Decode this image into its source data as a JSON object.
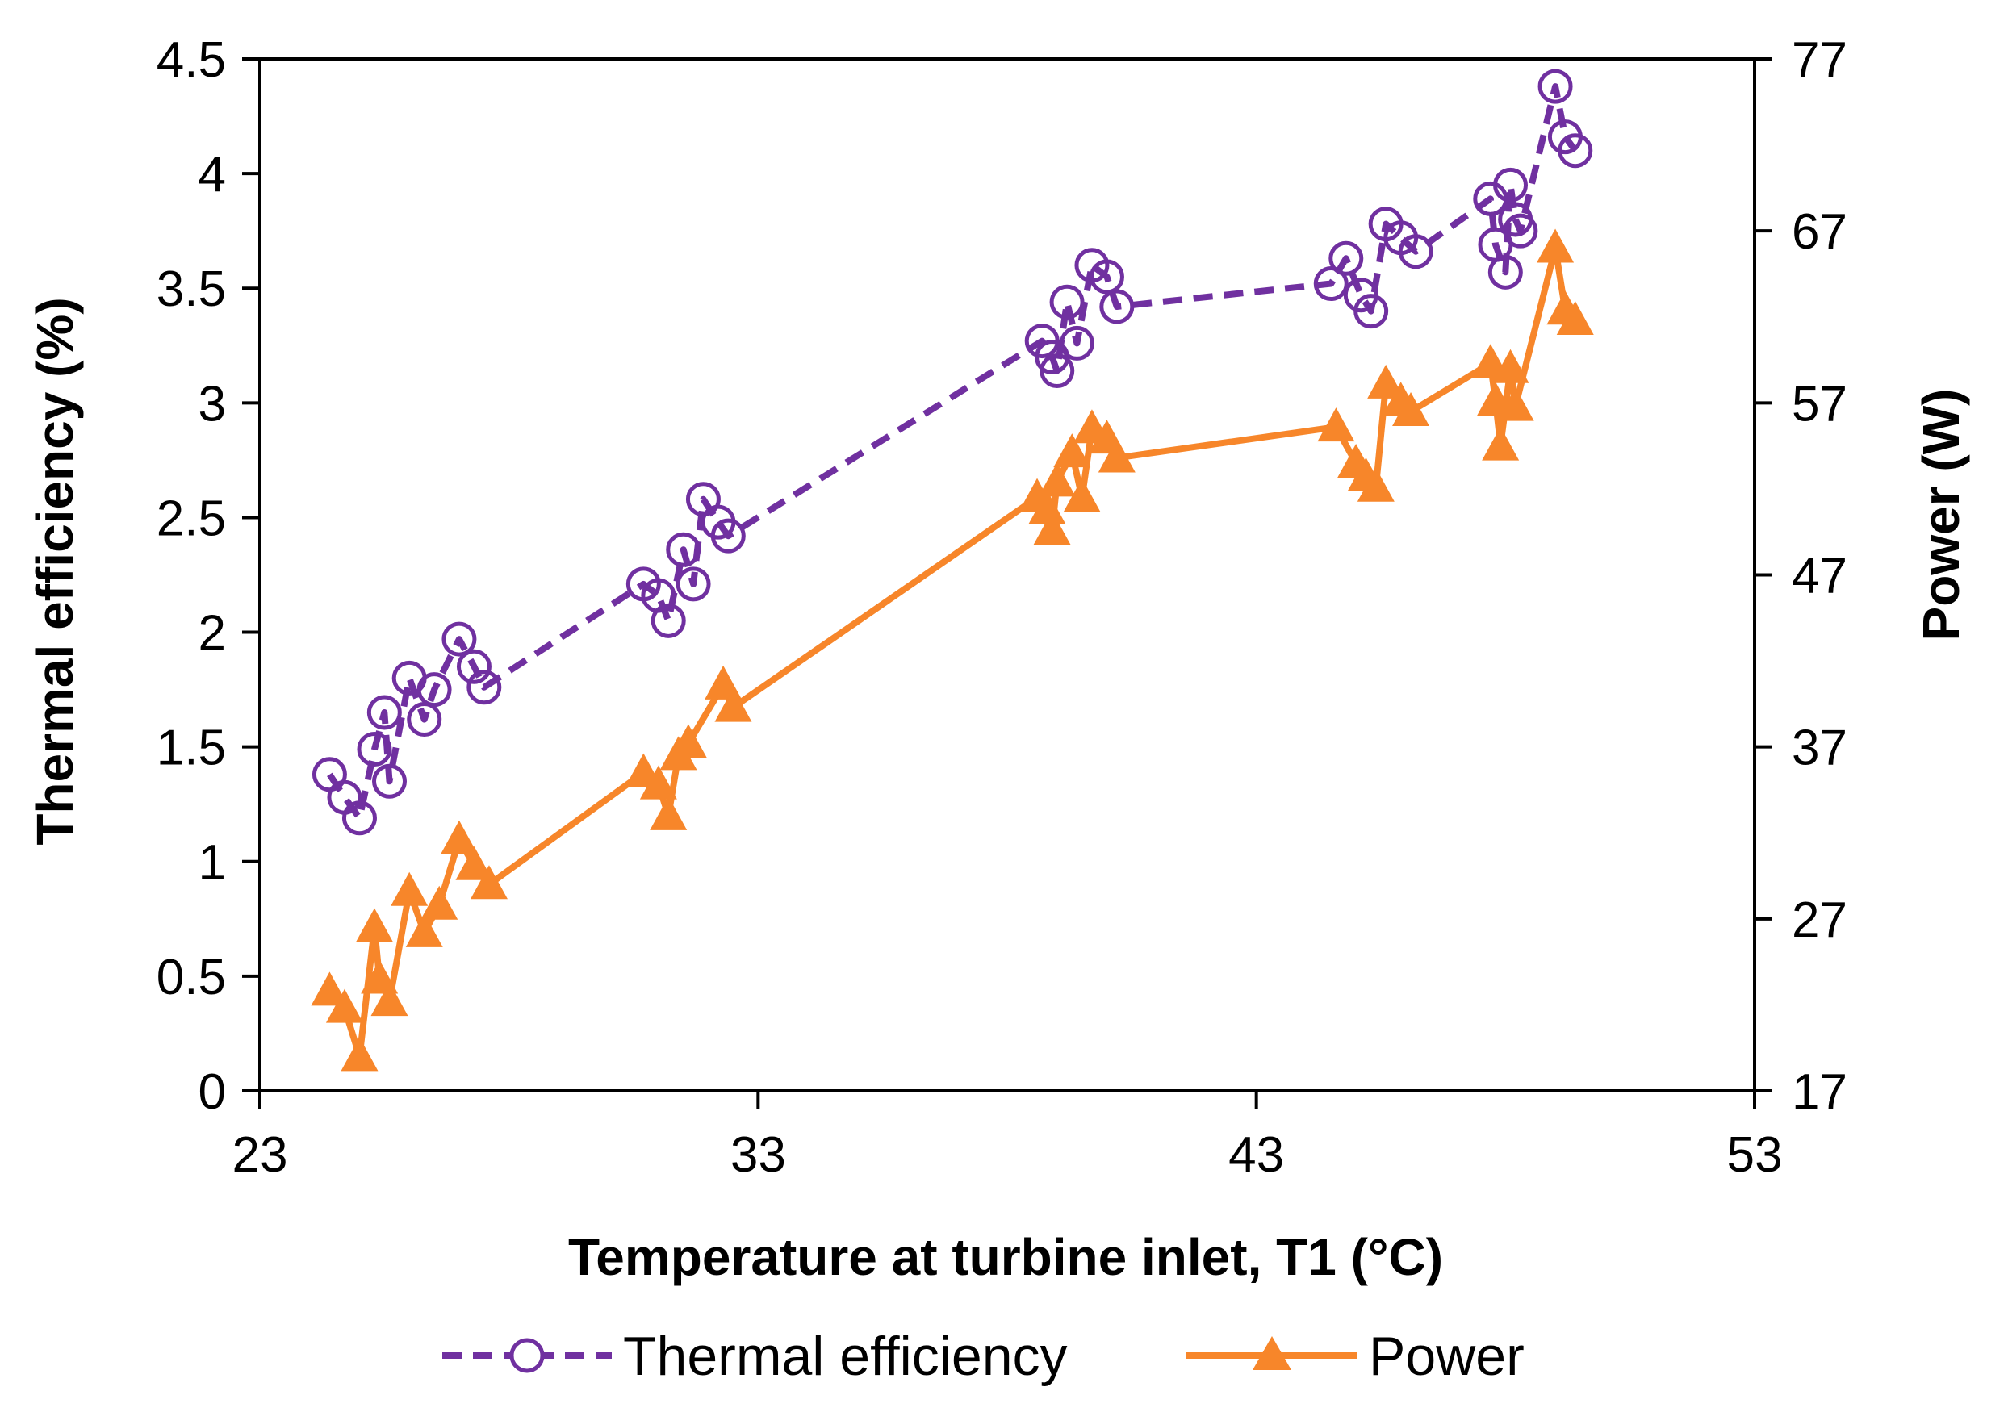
{
  "chart_data": {
    "type": "line",
    "title": "",
    "xlabel": "Temperature at turbine inlet, T1 (°C)",
    "ylabel": "Thermal efficiency (%)",
    "y2label": "Power (W)",
    "xlim": [
      23,
      53
    ],
    "ylim": [
      0,
      4.5
    ],
    "y2lim": [
      17,
      77
    ],
    "xticks": [
      "23",
      "33",
      "43",
      "53"
    ],
    "yticks": [
      "0",
      "0.5",
      "1",
      "1.5",
      "2",
      "2.5",
      "3",
      "3.5",
      "4",
      "4.5"
    ],
    "y2ticks": [
      "17",
      "27",
      "37",
      "47",
      "57",
      "67",
      "77"
    ],
    "legend_position": "bottom",
    "series": [
      {
        "name": "Thermal efficiency",
        "axis": "left",
        "style": "dashed",
        "marker": "open-circle",
        "color": "#7030A0",
        "x": [
          24.4,
          24.7,
          25.0,
          25.3,
          25.5,
          25.6,
          26.0,
          26.3,
          26.5,
          27.0,
          27.3,
          27.5,
          30.7,
          31.0,
          31.2,
          31.5,
          31.7,
          31.9,
          32.2,
          32.4,
          38.7,
          38.9,
          39.0,
          39.2,
          39.4,
          39.7,
          40.0,
          40.2,
          44.5,
          44.8,
          45.1,
          45.3,
          45.6,
          45.9,
          46.2,
          47.7,
          47.8,
          48.0,
          48.1,
          48.2,
          48.3,
          49.0,
          49.2,
          49.4
        ],
        "y": [
          1.38,
          1.28,
          1.19,
          1.49,
          1.65,
          1.35,
          1.8,
          1.62,
          1.75,
          1.97,
          1.85,
          1.76,
          2.21,
          2.16,
          2.05,
          2.36,
          2.21,
          2.58,
          2.48,
          2.42,
          3.27,
          3.2,
          3.14,
          3.44,
          3.26,
          3.6,
          3.55,
          3.42,
          3.52,
          3.63,
          3.47,
          3.4,
          3.78,
          3.72,
          3.66,
          3.89,
          3.69,
          3.57,
          3.95,
          3.8,
          3.75,
          4.38,
          4.16,
          4.1
        ]
      },
      {
        "name": "Power",
        "axis": "right",
        "style": "solid",
        "marker": "filled-triangle",
        "color": "#F7862A",
        "x": [
          24.4,
          24.7,
          25.0,
          25.3,
          25.4,
          25.6,
          26.0,
          26.3,
          26.6,
          27.0,
          27.3,
          27.6,
          30.7,
          31.0,
          31.2,
          31.4,
          31.6,
          32.3,
          32.5,
          38.6,
          38.8,
          38.9,
          39.0,
          39.3,
          39.5,
          39.7,
          40.0,
          40.2,
          44.6,
          45.0,
          45.2,
          45.4,
          45.6,
          45.9,
          46.1,
          47.7,
          47.8,
          47.9,
          48.1,
          48.2,
          49.0,
          49.2,
          49.4
        ],
        "y": [
          22.8,
          21.8,
          19.0,
          26.5,
          23.5,
          22.2,
          28.6,
          26.2,
          27.8,
          31.6,
          30.1,
          29.0,
          35.5,
          34.8,
          33.0,
          36.5,
          37.2,
          40.6,
          39.3,
          51.5,
          50.8,
          49.6,
          52.4,
          54.1,
          51.5,
          55.5,
          54.9,
          53.8,
          55.6,
          53.5,
          52.7,
          52.1,
          58.1,
          57.1,
          56.5,
          59.3,
          57.1,
          54.5,
          59.0,
          56.8,
          66.0,
          62.4,
          61.8
        ]
      }
    ]
  }
}
